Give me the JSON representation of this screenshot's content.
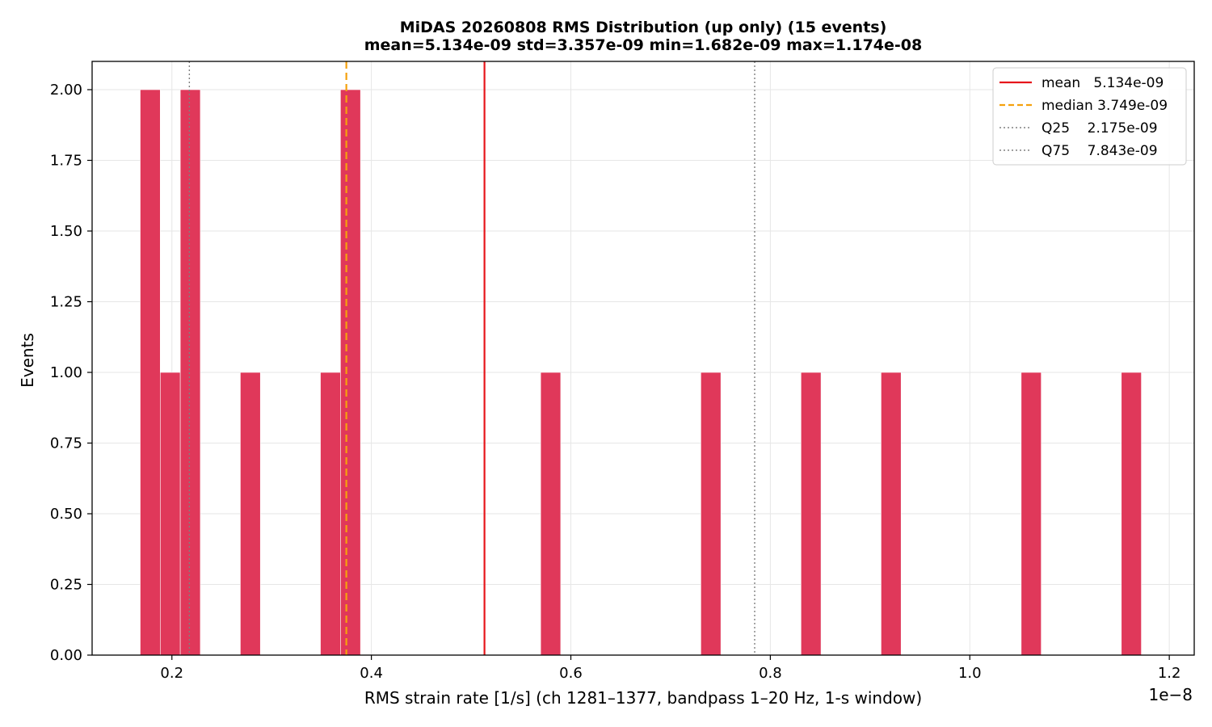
{
  "chart_data": {
    "type": "bar",
    "subtype": "histogram",
    "title": "MiDAS 20260808  RMS Distribution  (up only)  (15 events)",
    "subtitle": "mean=5.134e-09  std=3.357e-09  min=1.682e-09  max=1.174e-08",
    "xlabel": "RMS strain rate [1/s]  (ch 1281–1377, bandpass 1–20 Hz, 1-s window)",
    "ylabel": "Events",
    "x_offset_label": "1e−8",
    "x_scale_factor": 1e-08,
    "xlim": [
      0.12,
      1.225
    ],
    "ylim": [
      0,
      2.1
    ],
    "xticks": [
      0.2,
      0.4,
      0.6,
      0.8,
      1.0,
      1.2
    ],
    "xtick_labels": [
      "0.2",
      "0.4",
      "0.6",
      "0.8",
      "1.0",
      "1.2"
    ],
    "yticks": [
      0,
      0.25,
      0.5,
      0.75,
      1.0,
      1.25,
      1.5,
      1.75,
      2.0
    ],
    "ytick_labels": [
      "0.00",
      "0.25",
      "0.50",
      "0.75",
      "1.00",
      "1.25",
      "1.50",
      "1.75",
      "2.00"
    ],
    "grid": true,
    "bar_color": "#e0385a",
    "bins": [
      {
        "x0": 0.1682,
        "x1": 0.1883,
        "count": 2
      },
      {
        "x0": 0.1883,
        "x1": 0.2084,
        "count": 1
      },
      {
        "x0": 0.2084,
        "x1": 0.2285,
        "count": 2
      },
      {
        "x0": 0.2686,
        "x1": 0.2887,
        "count": 1
      },
      {
        "x0": 0.3489,
        "x1": 0.369,
        "count": 1
      },
      {
        "x0": 0.369,
        "x1": 0.3891,
        "count": 2
      },
      {
        "x0": 0.5697,
        "x1": 0.5898,
        "count": 1
      },
      {
        "x0": 0.7303,
        "x1": 0.7504,
        "count": 1
      },
      {
        "x0": 0.8307,
        "x1": 0.8508,
        "count": 1
      },
      {
        "x0": 0.911,
        "x1": 0.9311,
        "count": 1
      },
      {
        "x0": 1.0515,
        "x1": 1.0716,
        "count": 1
      },
      {
        "x0": 1.1519,
        "x1": 1.172,
        "count": 1
      }
    ],
    "reference_lines": [
      {
        "name": "mean",
        "value": 0.5134,
        "label": "5.134e-09",
        "color": "#e6161b",
        "style": "solid"
      },
      {
        "name": "median",
        "value": 0.3749,
        "label": "3.749e-09",
        "color": "#f5a10d",
        "style": "dashed"
      },
      {
        "name": "Q25",
        "value": 0.2175,
        "label": "2.175e-09",
        "color": "#808080",
        "style": "dotted"
      },
      {
        "name": "Q75",
        "value": 0.7843,
        "label": "7.843e-09",
        "color": "#808080",
        "style": "dotted"
      }
    ],
    "legend": {
      "placement": "top-right",
      "entries": [
        "mean   5.134e-09",
        "median 3.749e-09",
        "Q25    2.175e-09",
        "Q75    7.843e-09"
      ]
    }
  }
}
